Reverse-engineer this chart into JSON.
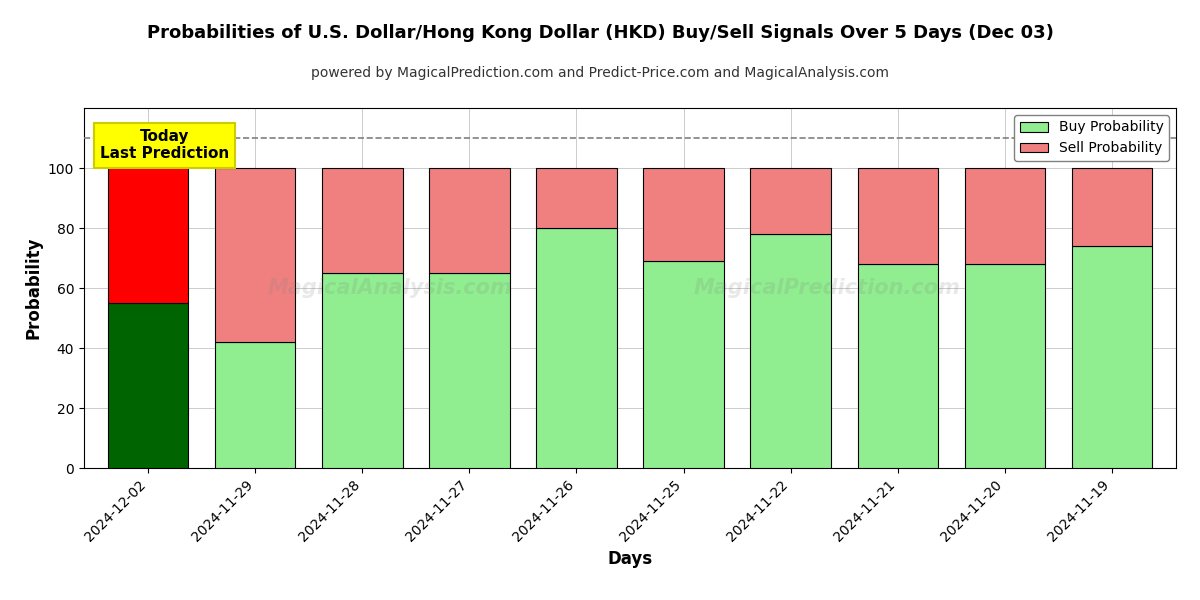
{
  "title": "Probabilities of U.S. Dollar/Hong Kong Dollar (HKD) Buy/Sell Signals Over 5 Days (Dec 03)",
  "subtitle": "powered by MagicalPrediction.com and Predict-Price.com and MagicalAnalysis.com",
  "xlabel": "Days",
  "ylabel": "Probability",
  "dates": [
    "2024-12-02",
    "2024-11-29",
    "2024-11-28",
    "2024-11-27",
    "2024-11-26",
    "2024-11-25",
    "2024-11-22",
    "2024-11-21",
    "2024-11-20",
    "2024-11-19"
  ],
  "buy_values": [
    55,
    42,
    65,
    65,
    80,
    69,
    78,
    68,
    68,
    74
  ],
  "sell_values": [
    45,
    58,
    35,
    35,
    20,
    31,
    22,
    32,
    32,
    26
  ],
  "today_bar_buy_color": "#006400",
  "today_bar_sell_color": "#FF0000",
  "regular_bar_buy_color": "#90EE90",
  "regular_bar_sell_color": "#F08080",
  "bar_edge_color": "#000000",
  "ylim": [
    0,
    120
  ],
  "yticks": [
    0,
    20,
    40,
    60,
    80,
    100
  ],
  "dashed_line_y": 110,
  "annotation_text": "Today\nLast Prediction",
  "annotation_bg_color": "#FFFF00",
  "legend_buy_color": "#90EE90",
  "legend_sell_color": "#F08080",
  "background_color": "#FFFFFF",
  "grid_color": "#CCCCCC",
  "title_fontsize": 13,
  "subtitle_fontsize": 10,
  "bar_width": 0.75
}
